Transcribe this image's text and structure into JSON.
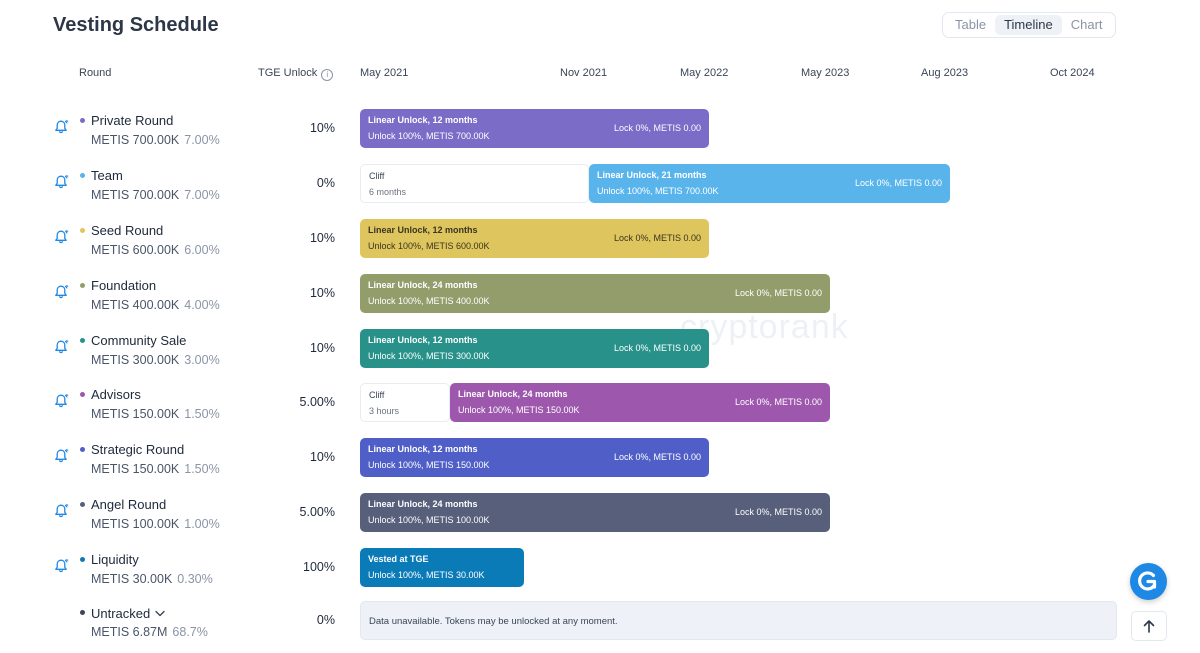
{
  "title": "Vesting Schedule",
  "view_toggle": {
    "table": "Table",
    "timeline": "Timeline",
    "chart": "Chart",
    "active": "Timeline"
  },
  "headers": {
    "round": "Round",
    "tge": "TGE Unlock"
  },
  "dates": [
    "May 2021",
    "Nov 2021",
    "May 2022",
    "May 2023",
    "Aug 2023",
    "Oct 2024"
  ],
  "rows": [
    {
      "name": "Private Round",
      "amount": "METIS 700.00K",
      "pct": "7.00%",
      "tge": "10%",
      "color": "#7a6cc7",
      "bar_label": "Linear Unlock, 12 months",
      "bar_sub": "Unlock 100%, METIS 700.00K",
      "lock": "Lock 0%, METIS 0.00"
    },
    {
      "name": "Team",
      "amount": "METIS 700.00K",
      "pct": "7.00%",
      "tge": "0%",
      "color": "#5ab4ec",
      "cliff_label": "Cliff",
      "cliff_sub": "6 months",
      "bar_label": "Linear Unlock, 21 months",
      "bar_sub": "Unlock 100%, METIS 700.00K",
      "lock": "Lock 0%, METIS 0.00"
    },
    {
      "name": "Seed Round",
      "amount": "METIS 600.00K",
      "pct": "6.00%",
      "tge": "10%",
      "color": "#dfc55d",
      "bar_label": "Linear Unlock, 12 months",
      "bar_sub": "Unlock 100%, METIS 600.00K",
      "lock": "Lock 0%, METIS 0.00"
    },
    {
      "name": "Foundation",
      "amount": "METIS 400.00K",
      "pct": "4.00%",
      "tge": "10%",
      "color": "#939d6c",
      "bar_label": "Linear Unlock, 24 months",
      "bar_sub": "Unlock 100%, METIS 400.00K",
      "lock": "Lock 0%, METIS 0.00"
    },
    {
      "name": "Community Sale",
      "amount": "METIS 300.00K",
      "pct": "3.00%",
      "tge": "10%",
      "color": "#27918a",
      "bar_label": "Linear Unlock, 12 months",
      "bar_sub": "Unlock 100%, METIS 300.00K",
      "lock": "Lock 0%, METIS 0.00"
    },
    {
      "name": "Advisors",
      "amount": "METIS 150.00K",
      "pct": "1.50%",
      "tge": "5.00%",
      "color": "#9d58ad",
      "cliff_label": "Cliff",
      "cliff_sub": "3 hours",
      "bar_label": "Linear Unlock, 24 months",
      "bar_sub": "Unlock 100%, METIS 150.00K",
      "lock": "Lock 0%, METIS 0.00"
    },
    {
      "name": "Strategic Round",
      "amount": "METIS 150.00K",
      "pct": "1.50%",
      "tge": "10%",
      "color": "#4f5fc7",
      "bar_label": "Linear Unlock, 12 months",
      "bar_sub": "Unlock 100%, METIS 150.00K",
      "lock": "Lock 0%, METIS 0.00"
    },
    {
      "name": "Angel Round",
      "amount": "METIS 100.00K",
      "pct": "1.00%",
      "tge": "5.00%",
      "color": "#575f7a",
      "bar_label": "Linear Unlock, 24 months",
      "bar_sub": "Unlock 100%, METIS 100.00K",
      "lock": "Lock 0%, METIS 0.00"
    },
    {
      "name": "Liquidity",
      "amount": "METIS 30.00K",
      "pct": "0.30%",
      "tge": "100%",
      "color": "#0b7bb8",
      "bar_label": "Vested at TGE",
      "bar_sub": "Unlock 100%, METIS 30.00K",
      "lock": ""
    },
    {
      "name": "Untracked",
      "amount": "METIS 6.87M",
      "pct": "68.7%",
      "tge": "0%",
      "color": "#3b4556",
      "unavailable": "Data unavailable. Tokens may be unlocked at any moment."
    }
  ],
  "watermark": "cryptorank"
}
